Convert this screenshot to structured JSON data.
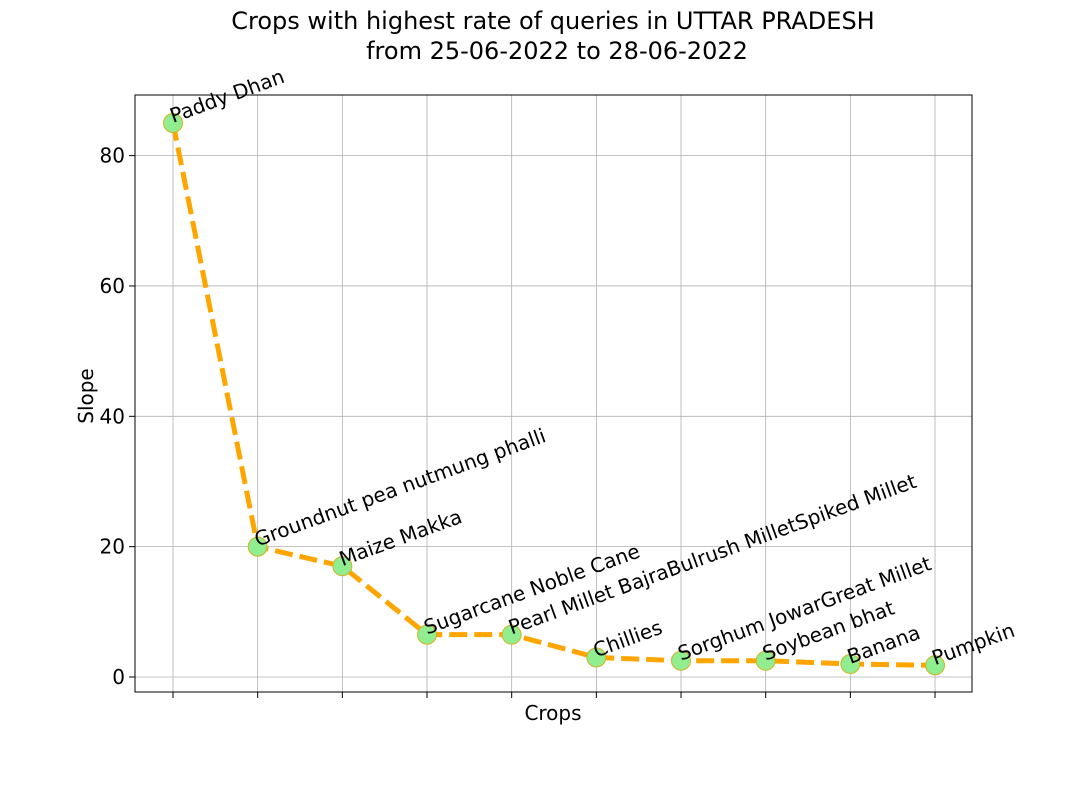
{
  "chart_data": {
    "type": "line",
    "title_line1": "Crops with highest rate of queries in UTTAR PRADESH",
    "title_line2": "from 25-06-2022 to 28-06-2022",
    "xlabel": "Crops",
    "ylabel": "Slope",
    "ylim": [
      -2.3,
      89.3
    ],
    "yticks": [
      0,
      20,
      40,
      60,
      80
    ],
    "grid": true,
    "categories": [
      "Paddy Dhan",
      "Groundnut pea nutmung phalli",
      "Maize Makka",
      "Sugarcane Noble Cane",
      "Pearl Millet BajraBulrush MilletSpiked Millet",
      "Chillies",
      "Sorghum JowarGreat Millet",
      "Soybean bhat",
      "Banana",
      "Pumpkin"
    ],
    "values": [
      85.0,
      20.0,
      17.0,
      6.5,
      6.5,
      3.0,
      2.5,
      2.5,
      2.0,
      1.8
    ],
    "line_color": "#ffa500",
    "marker_color": "#90ee90",
    "marker_edge_color": "#d4b020",
    "grid_color": "#b0b0b0"
  }
}
